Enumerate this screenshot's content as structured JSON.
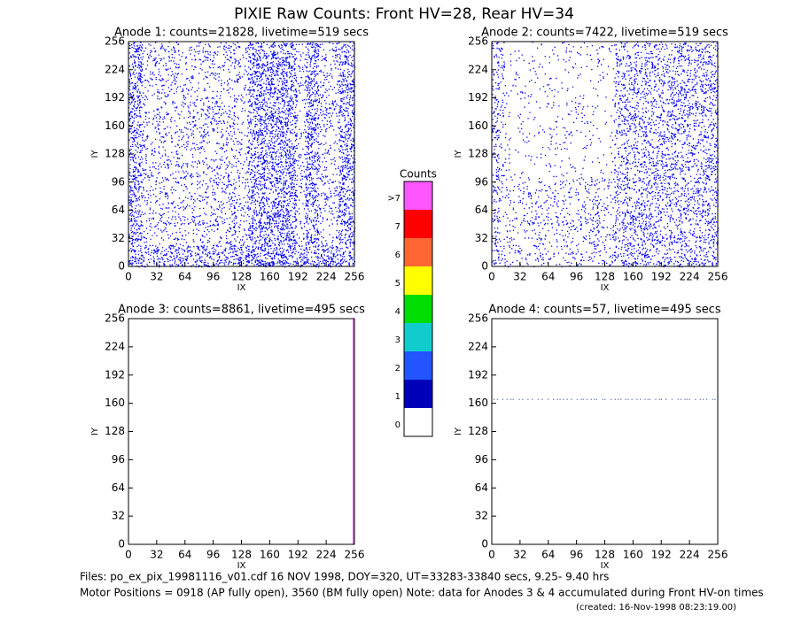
{
  "title": "PIXIE Raw Counts:  Front HV=28, Rear HV=34",
  "panels": [
    {
      "title": "Anode 1: counts=21828, livetime=519 secs",
      "xlabel": "IX",
      "ylabel": "IY",
      "xlim": [
        0,
        256
      ],
      "ylim": [
        0,
        256
      ],
      "xticks": [
        0,
        32,
        64,
        96,
        128,
        160,
        192,
        224,
        256
      ],
      "yticks": [
        0,
        32,
        64,
        96,
        128,
        160,
        192,
        224,
        256
      ]
    },
    {
      "title": "Anode 2: counts=7422, livetime=519 secs",
      "xlabel": "IX",
      "ylabel": "IY",
      "xlim": [
        0,
        256
      ],
      "ylim": [
        0,
        256
      ],
      "xticks": [
        0,
        32,
        64,
        96,
        128,
        160,
        192,
        224,
        256
      ],
      "yticks": [
        0,
        32,
        64,
        96,
        128,
        160,
        192,
        224,
        256
      ]
    },
    {
      "title": "Anode 3: counts=8861, livetime=495 secs",
      "xlabel": "IX",
      "ylabel": "IY",
      "xlim": [
        0,
        256
      ],
      "ylim": [
        0,
        256
      ],
      "xticks": [
        0,
        32,
        64,
        96,
        128,
        160,
        192,
        224,
        256
      ],
      "yticks": [
        0,
        32,
        64,
        96,
        128,
        160,
        192,
        224,
        256
      ]
    },
    {
      "title": "Anode 4: counts=57, livetime=495 secs",
      "xlabel": "IX",
      "ylabel": "IY",
      "xlim": [
        0,
        256
      ],
      "ylim": [
        0,
        256
      ],
      "xticks": [
        0,
        32,
        64,
        96,
        128,
        160,
        192,
        224,
        256
      ],
      "yticks": [
        0,
        32,
        64,
        96,
        128,
        160,
        192,
        224,
        256
      ]
    }
  ],
  "colorbar": {
    "title": "Counts",
    "levels": [
      {
        "label": ">7",
        "color": "#ff55ff"
      },
      {
        "label": "7",
        "color": "#ff0000"
      },
      {
        "label": "6",
        "color": "#ff6633"
      },
      {
        "label": "5",
        "color": "#ffff00"
      },
      {
        "label": "4",
        "color": "#00dd00"
      },
      {
        "label": "3",
        "color": "#11cccc"
      },
      {
        "label": "2",
        "color": "#2255ff"
      },
      {
        "label": "1",
        "color": "#0000bb"
      },
      {
        "label": "0",
        "color": "#ffffff"
      }
    ]
  },
  "footer": [
    "Files: po_ex_pix_19981116_v01.cdf    16 NOV 1998, DOY=320, UT=33283-33840 secs,  9.25- 9.40 hrs",
    "Motor Positions = 0918 (AP fully open), 3560 (BM fully open)    Note: data for Anodes 3 & 4 accumulated during Front HV-on times",
    "(created: 16-Nov-1998 08:23:19.00)"
  ]
}
